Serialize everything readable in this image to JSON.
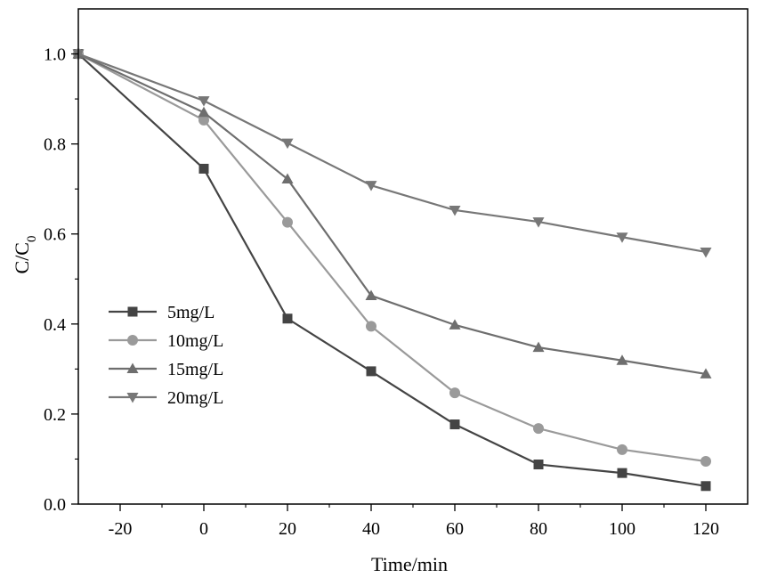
{
  "chart_data": {
    "type": "line",
    "title": "",
    "xlabel": "Time/min",
    "ylabel": "C/C",
    "ylabel_subscript": "0",
    "xlim": [
      -30,
      130
    ],
    "ylim": [
      0.0,
      1.1
    ],
    "xticks": [
      -20,
      0,
      20,
      40,
      60,
      80,
      100,
      120
    ],
    "yticks": [
      0.0,
      0.2,
      0.4,
      0.6,
      0.8,
      1.0
    ],
    "xtick_labels": [
      "-20",
      "0",
      "20",
      "40",
      "60",
      "80",
      "100",
      "120"
    ],
    "ytick_labels": [
      "0.0",
      "0.2",
      "0.4",
      "0.6",
      "0.8",
      "1.0"
    ],
    "x": [
      -30,
      0,
      20,
      40,
      60,
      80,
      100,
      120
    ],
    "legend_position": "center-left",
    "grid": false,
    "series": [
      {
        "name": "5mg/L",
        "marker": "square",
        "color": "#444444",
        "values": [
          1.0,
          0.745,
          0.412,
          0.295,
          0.177,
          0.088,
          0.069,
          0.04
        ]
      },
      {
        "name": "10mg/L",
        "marker": "circle",
        "color": "#9a9a9a",
        "values": [
          1.0,
          0.853,
          0.626,
          0.395,
          0.247,
          0.168,
          0.121,
          0.095
        ]
      },
      {
        "name": "15mg/L",
        "marker": "triangle-up",
        "color": "#6e6e6e",
        "values": [
          1.0,
          0.87,
          0.722,
          0.463,
          0.398,
          0.348,
          0.319,
          0.289
        ]
      },
      {
        "name": "20mg/L",
        "marker": "triangle-down",
        "color": "#777777",
        "values": [
          1.0,
          0.896,
          0.802,
          0.708,
          0.653,
          0.627,
          0.593,
          0.56
        ]
      }
    ]
  }
}
